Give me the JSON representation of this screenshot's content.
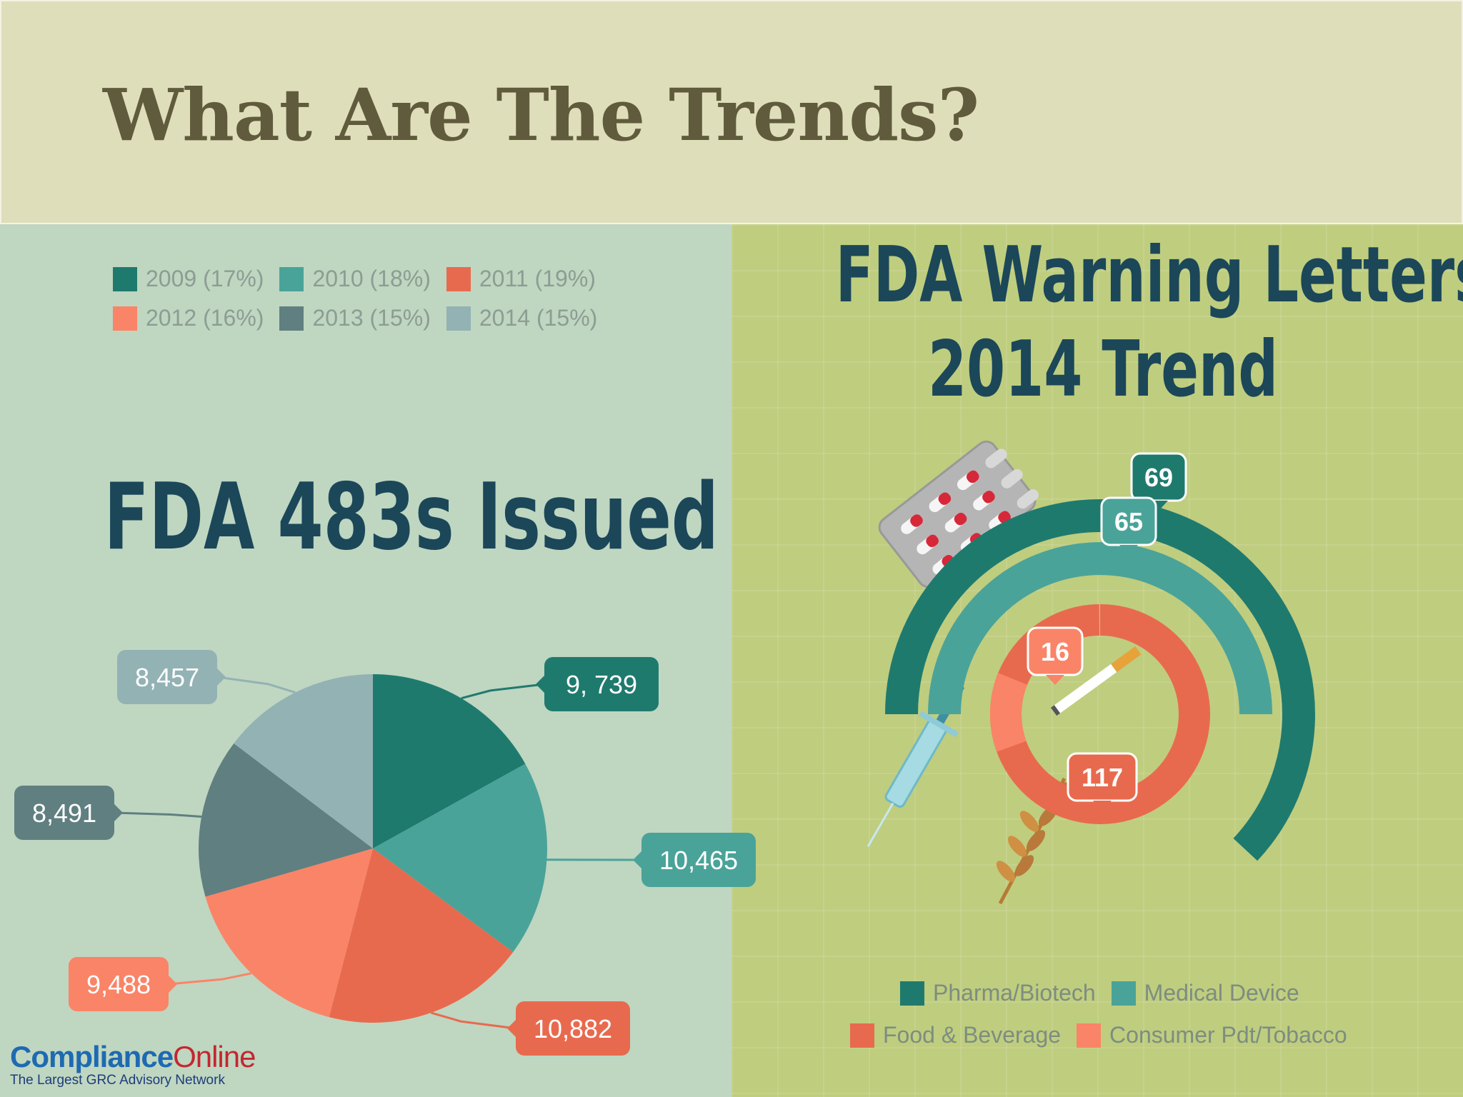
{
  "slide": {
    "title": "What Are The Trends?"
  },
  "chart_data": [
    {
      "type": "pie",
      "title": "FDA 483s Issued",
      "legend_position": "top",
      "slices": [
        {
          "label": "2009 (17%)",
          "value": 9739,
          "display": "9, 739",
          "color": "#1f7a6e"
        },
        {
          "label": "2010 (18%)",
          "value": 10465,
          "display": "10,465",
          "color": "#4aa399"
        },
        {
          "label": "2011 (19%)",
          "value": 10882,
          "display": "10,882",
          "color": "#e86a4e"
        },
        {
          "label": "2012 (16%)",
          "value": 9488,
          "display": "9,488",
          "color": "#fa8467"
        },
        {
          "label": "2013 (15%)",
          "value": 8491,
          "display": "8,491",
          "color": "#607f80"
        },
        {
          "label": "2014 (15%)",
          "value": 8457,
          "display": "8,457",
          "color": "#93b2b4"
        }
      ]
    },
    {
      "type": "radial-bar",
      "title_line1": "FDA Warning Letters",
      "title_line2": "2014 Trend",
      "legend_position": "bottom",
      "series": [
        {
          "name": "Pharma/Biotech",
          "value": 69,
          "display": "69",
          "color": "#1f7a6e"
        },
        {
          "name": "Medical Device",
          "value": 65,
          "display": "65",
          "color": "#4aa399"
        },
        {
          "name": "Food & Beverage",
          "value": 117,
          "display": "117",
          "color": "#e86a4e"
        },
        {
          "name": "Consumer Pdt/Tobacco",
          "value": 16,
          "display": "16",
          "color": "#fa8467"
        }
      ]
    }
  ],
  "logo": {
    "name_part1": "Compliance",
    "name_part2": "nline",
    "tagline": "The Largest GRC Advisory Network"
  }
}
